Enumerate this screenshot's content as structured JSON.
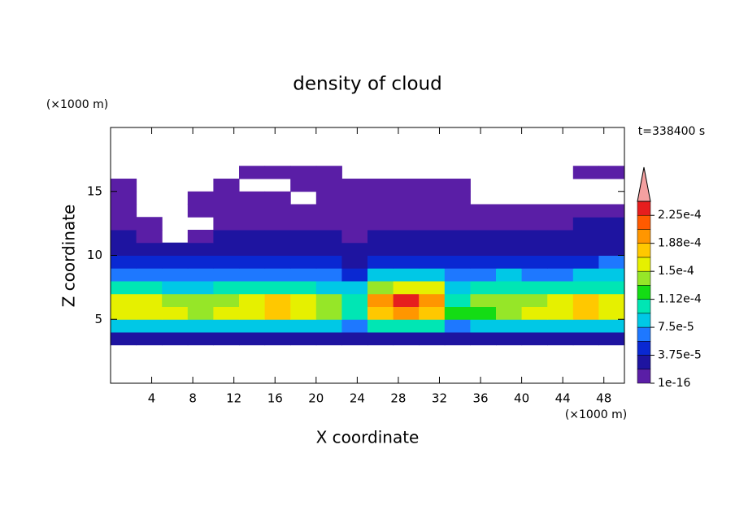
{
  "chart_data": {
    "type": "contour",
    "title": "density of cloud",
    "x_label": "X coordinate",
    "y_label": "Z coordinate",
    "x_unit": "(×1000 m)",
    "y_unit": "(×1000 m)",
    "time_label": "t=338400 s",
    "xlim": [
      0,
      50
    ],
    "ylim": [
      0,
      20
    ],
    "xticks": [
      4,
      8,
      12,
      16,
      20,
      24,
      28,
      32,
      36,
      40,
      44,
      48
    ],
    "yticks": [
      5,
      10,
      15
    ],
    "x_edges": [
      0,
      2.5,
      5,
      7.5,
      10,
      12.5,
      15,
      17.5,
      20,
      22.5,
      25,
      27.5,
      30,
      32.5,
      35,
      37.5,
      40,
      42.5,
      45,
      47.5,
      50
    ],
    "z_edges": [
      3,
      4,
      5,
      6,
      7,
      8,
      9,
      10,
      11,
      12,
      13,
      14,
      15,
      16,
      17
    ],
    "values": [
      [
        2.5e-05,
        2.5e-05,
        2.5e-05,
        2.5e-05,
        2.5e-05,
        2.5e-05,
        2.5e-05,
        2.5e-05,
        2.5e-05,
        2.5e-05,
        2.5e-05,
        2.5e-05,
        2.5e-05,
        2.5e-05,
        2.5e-05,
        2.5e-05,
        2.5e-05,
        2.5e-05,
        2.5e-05,
        2.5e-05
      ],
      [
        9e-05,
        9e-05,
        8.5e-05,
        8e-05,
        8.5e-05,
        9e-05,
        9e-05,
        9e-05,
        8e-05,
        7e-05,
        9.5e-05,
        0.0001,
        9.5e-05,
        7e-05,
        8e-05,
        8.5e-05,
        9e-05,
        9e-05,
        9e-05,
        9e-05
      ],
      [
        0.00016,
        0.000155,
        0.00015,
        0.000145,
        0.00015,
        0.00016,
        0.00017,
        0.00016,
        0.00014,
        0.00011,
        0.000175,
        0.00019,
        0.00018,
        0.000115,
        0.00013,
        0.00014,
        0.00015,
        0.000165,
        0.00017,
        0.00016
      ],
      [
        0.000155,
        0.00015,
        0.000145,
        0.00014,
        0.000145,
        0.00016,
        0.00017,
        0.00016,
        0.000135,
        0.000105,
        0.00019,
        0.000225,
        0.000205,
        0.00011,
        0.000135,
        0.00014,
        0.000145,
        0.00016,
        0.00017,
        0.00016
      ],
      [
        0.0001,
        9.5e-05,
        9e-05,
        9e-05,
        9.5e-05,
        0.0001,
        0.000105,
        0.0001,
        9e-05,
        8e-05,
        0.000135,
        0.000165,
        0.00015,
        9e-05,
        0.0001,
        0.000105,
        0.0001,
        0.0001,
        0.000105,
        0.00011
      ],
      [
        7e-05,
        6.5e-05,
        6e-05,
        6e-05,
        6.5e-05,
        7e-05,
        7e-05,
        6.5e-05,
        6e-05,
        5.5e-05,
        8e-05,
        9e-05,
        8e-05,
        6e-05,
        7e-05,
        7.5e-05,
        7e-05,
        7e-05,
        7.5e-05,
        8e-05
      ],
      [
        5e-05,
        4.5e-05,
        4e-05,
        4e-05,
        4.5e-05,
        4.5e-05,
        5e-05,
        4.5e-05,
        4e-05,
        3.5e-05,
        5e-05,
        5.5e-05,
        5e-05,
        4e-05,
        5e-05,
        5e-05,
        4.5e-05,
        5e-05,
        5.5e-05,
        6e-05
      ],
      [
        3e-05,
        3e-05,
        2e-05,
        2.5e-05,
        3e-05,
        3e-05,
        3e-05,
        3e-05,
        2.5e-05,
        2e-05,
        3e-05,
        3e-05,
        3e-05,
        2.5e-05,
        3e-05,
        3e-05,
        3e-05,
        3e-05,
        3.5e-05,
        3.5e-05
      ],
      [
        2e-05,
        1e-05,
        0,
        1e-05,
        2e-05,
        2e-05,
        2e-05,
        2e-05,
        2e-05,
        1e-05,
        2e-05,
        2e-05,
        2e-05,
        2e-05,
        2e-05,
        2e-05,
        2e-05,
        2e-05,
        2.5e-05,
        2.5e-05
      ],
      [
        1e-05,
        1e-05,
        0,
        0,
        1e-05,
        1e-05,
        1e-05,
        1e-05,
        1e-05,
        1e-05,
        1e-05,
        1e-05,
        1e-05,
        1e-05,
        1e-05,
        1e-05,
        1e-05,
        1e-05,
        2e-05,
        2e-05
      ],
      [
        1e-05,
        0,
        0,
        1e-05,
        1e-05,
        1e-05,
        1e-05,
        1e-05,
        1e-05,
        1e-05,
        1e-05,
        1e-05,
        1e-05,
        1e-05,
        1e-05,
        1e-05,
        1e-05,
        1e-05,
        1e-05,
        1e-05
      ],
      [
        1e-05,
        0,
        0,
        1e-05,
        1e-05,
        1e-05,
        1e-05,
        0,
        1e-05,
        1e-05,
        1e-05,
        1e-05,
        1e-05,
        1e-05,
        0,
        0,
        0,
        0,
        0,
        0
      ],
      [
        1e-05,
        0,
        0,
        0,
        1e-05,
        0,
        0,
        1e-05,
        1e-05,
        1e-05,
        1e-05,
        1e-05,
        1e-05,
        1e-05,
        0,
        0,
        0,
        0,
        0,
        0
      ],
      [
        0,
        0,
        0,
        0,
        0,
        1e-05,
        1e-05,
        1e-05,
        1e-05,
        0,
        0,
        0,
        0,
        0,
        0,
        0,
        0,
        0,
        1e-05,
        1e-05
      ]
    ],
    "levels": [
      1e-16,
      1.875e-05,
      3.75e-05,
      5.625e-05,
      7.5e-05,
      9.375e-05,
      0.0001125,
      0.00013125,
      0.00015,
      0.00016875,
      0.0001875,
      0.00020625,
      0.000225,
      0.00024375
    ],
    "colors": [
      "#5a1ea6",
      "#1e14a0",
      "#0a28d2",
      "#1e78ff",
      "#00c8e6",
      "#00e6b4",
      "#14dc14",
      "#96e628",
      "#e6f000",
      "#ffc800",
      "#ff9600",
      "#ff5a00",
      "#e61e1e"
    ],
    "extend_color": "#f4a0a0",
    "colorbar_ticks": [
      1e-16,
      {
        "value": 3.75e-05,
        "label": "3.75e-5"
      },
      {
        "value": 7.5e-05,
        "label": "7.5e-5"
      },
      {
        "value": 0.0001125,
        "label": "1.12e-4"
      },
      {
        "value": 0.00015,
        "label": "1.5e-4"
      },
      {
        "value": 0.0001875,
        "label": "1.88e-4"
      },
      {
        "value": 0.000225,
        "label": "2.25e-4"
      }
    ]
  }
}
